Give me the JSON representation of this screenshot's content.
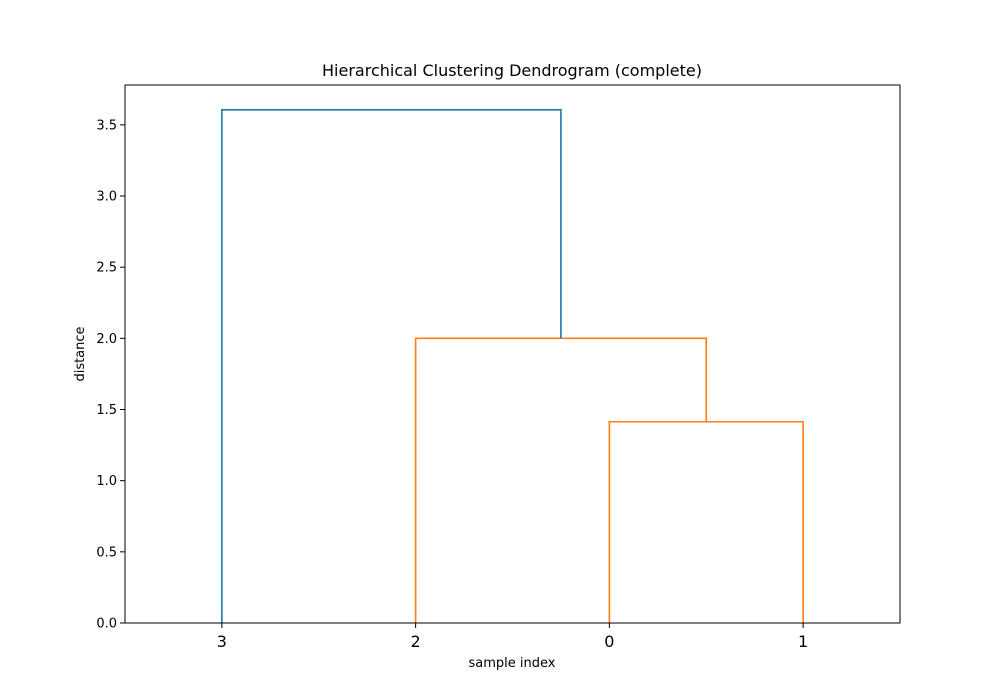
{
  "chart_data": {
    "type": "dendrogram",
    "title": "Hierarchical Clustering Dendrogram (complete)",
    "xlabel": "sample index",
    "ylabel": "distance",
    "leaves": [
      "3",
      "2",
      "0",
      "1"
    ],
    "ylim": [
      0,
      3.78
    ],
    "yticks": [
      0.0,
      0.5,
      1.0,
      1.5,
      2.0,
      2.5,
      3.0,
      3.5
    ],
    "ytick_labels": [
      "0.0",
      "0.5",
      "1.0",
      "1.5",
      "2.0",
      "2.5",
      "3.0",
      "3.5"
    ],
    "links": [
      {
        "name": "link-0-1",
        "left": "0",
        "right": "1",
        "height": 1.414,
        "color": "#ff7f0e"
      },
      {
        "name": "link-2-01",
        "left": "2",
        "right": "link-0-1",
        "height": 2.0,
        "color": "#ff7f0e"
      },
      {
        "name": "link-3-201",
        "left": "3",
        "right": "link-2-01",
        "height": 3.606,
        "color": "#1f77b4"
      }
    ],
    "grid": false,
    "legend": "none"
  }
}
